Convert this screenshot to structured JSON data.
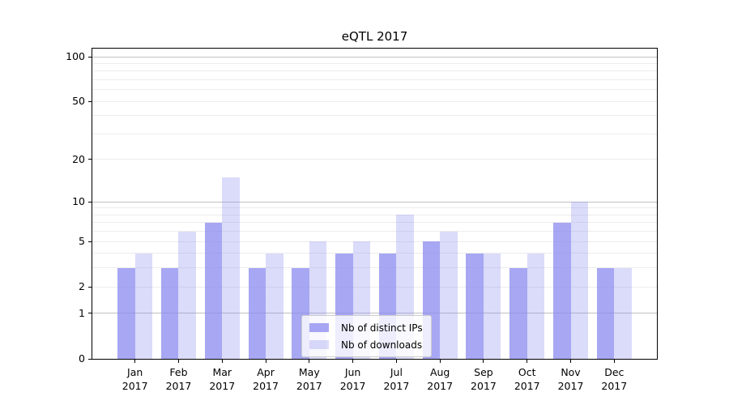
{
  "chart_data": {
    "type": "bar",
    "title": "eQTL 2017",
    "categories": [
      "Jan",
      "Feb",
      "Mar",
      "Apr",
      "May",
      "Jun",
      "Jul",
      "Aug",
      "Sep",
      "Oct",
      "Nov",
      "Dec"
    ],
    "year_label": "2017",
    "series": [
      {
        "name": "Nb of distinct IPs",
        "color": "#8989ef",
        "alpha": 0.75,
        "values": [
          3,
          3,
          7,
          3,
          3,
          4,
          4,
          5,
          4,
          3,
          7,
          3
        ]
      },
      {
        "name": "Nb of downloads",
        "color": "#8989ef",
        "alpha": 0.3,
        "values": [
          4,
          6,
          15,
          4,
          5,
          5,
          8,
          6,
          4,
          4,
          10,
          3
        ]
      }
    ],
    "yscale": "log1p",
    "ylim": [
      0,
      113
    ],
    "yticks": [
      0,
      1,
      2,
      5,
      10,
      20,
      50,
      100
    ],
    "major_gridlines": [
      1,
      10,
      100
    ],
    "minor_gridlines": [
      2,
      3,
      4,
      5,
      6,
      7,
      8,
      9,
      20,
      30,
      40,
      50,
      60,
      70,
      80,
      90
    ],
    "grid": true,
    "legend_position": "lower center",
    "colors": {
      "bar_base": "#8989ef",
      "major_grid": "#c0c0c0",
      "minor_grid": "#ececec",
      "axis": "#000000",
      "legend_border": "#cccccc"
    }
  }
}
